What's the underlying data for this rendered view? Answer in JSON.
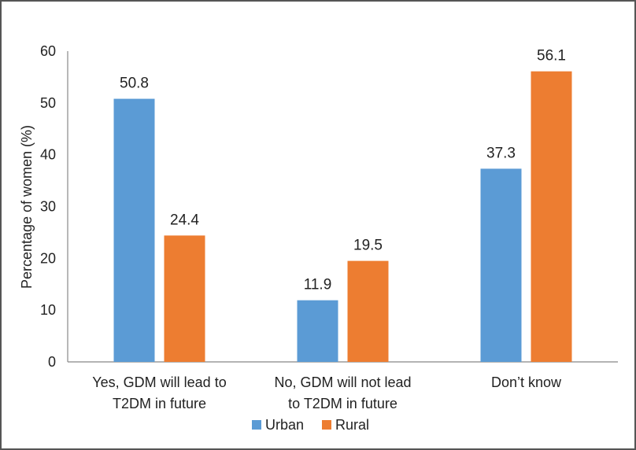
{
  "chart_data": {
    "type": "bar",
    "ylabel": "Percentage of women (%)",
    "ylim": [
      0,
      60
    ],
    "yticks": [
      0,
      10,
      20,
      30,
      40,
      50,
      60
    ],
    "categories": [
      [
        "Yes, GDM will lead to",
        "T2DM in future"
      ],
      [
        "No, GDM will not lead",
        "to T2DM in future"
      ],
      [
        "Don’t know"
      ]
    ],
    "series": [
      {
        "name": "Urban",
        "color": "#5b9bd5",
        "values": [
          50.8,
          11.9,
          37.3
        ]
      },
      {
        "name": "Rural",
        "color": "#ed7d31",
        "values": [
          24.4,
          19.5,
          56.1
        ]
      }
    ],
    "data_labels": true,
    "grid": false,
    "legend": "bottom"
  }
}
